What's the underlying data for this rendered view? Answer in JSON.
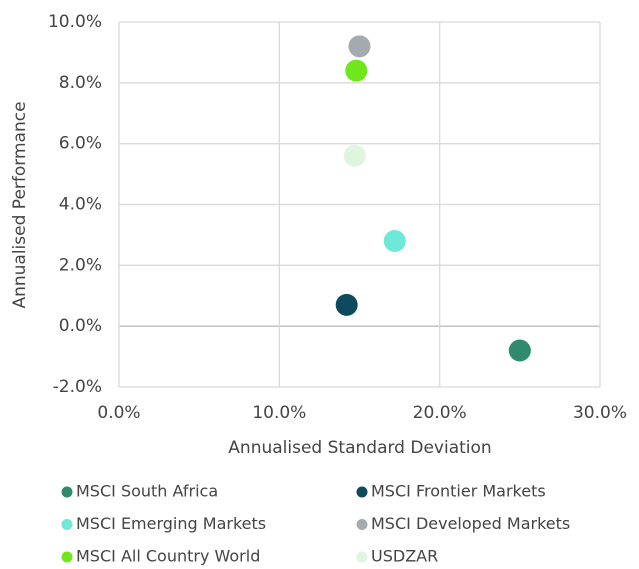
{
  "chart_data": {
    "type": "scatter",
    "x_label": "Annualised Standard Deviation",
    "y_label": "Annualised Performance",
    "xlim": [
      0,
      30
    ],
    "xticks": [
      {
        "value": 0,
        "label": "0.0%"
      },
      {
        "value": 10,
        "label": "10.0%"
      },
      {
        "value": 20,
        "label": "20.0%"
      },
      {
        "value": 30,
        "label": "30.0%"
      }
    ],
    "ylim": [
      -2,
      10
    ],
    "yticks": [
      {
        "value": -2,
        "label": "-2.0%"
      },
      {
        "value": 0,
        "label": "0.0%"
      },
      {
        "value": 2,
        "label": "2.0%"
      },
      {
        "value": 4,
        "label": "4.0%"
      },
      {
        "value": 6,
        "label": "6.0%"
      },
      {
        "value": 8,
        "label": "8.0%"
      },
      {
        "value": 10,
        "label": "10.0%"
      }
    ],
    "grid": true,
    "legend": "bottom",
    "series": [
      {
        "name": "MSCI South Africa",
        "color": "#2f8a6e",
        "x": [
          25.0
        ],
        "values": [
          -0.8
        ]
      },
      {
        "name": "MSCI Frontier Markets",
        "color": "#0d4a5c",
        "x": [
          14.2
        ],
        "values": [
          0.7
        ]
      },
      {
        "name": "MSCI Emerging Markets",
        "color": "#6ee8d8",
        "x": [
          17.2
        ],
        "values": [
          2.8
        ]
      },
      {
        "name": "MSCI Developed Markets",
        "color": "#a3aab0",
        "x": [
          15.0
        ],
        "values": [
          9.2
        ]
      },
      {
        "name": "MSCI All Country World",
        "color": "#6ee81a",
        "x": [
          14.8
        ],
        "values": [
          8.4
        ]
      },
      {
        "name": "USDZAR",
        "color": "#dff5e0",
        "x": [
          14.7
        ],
        "values": [
          5.6
        ]
      }
    ]
  }
}
